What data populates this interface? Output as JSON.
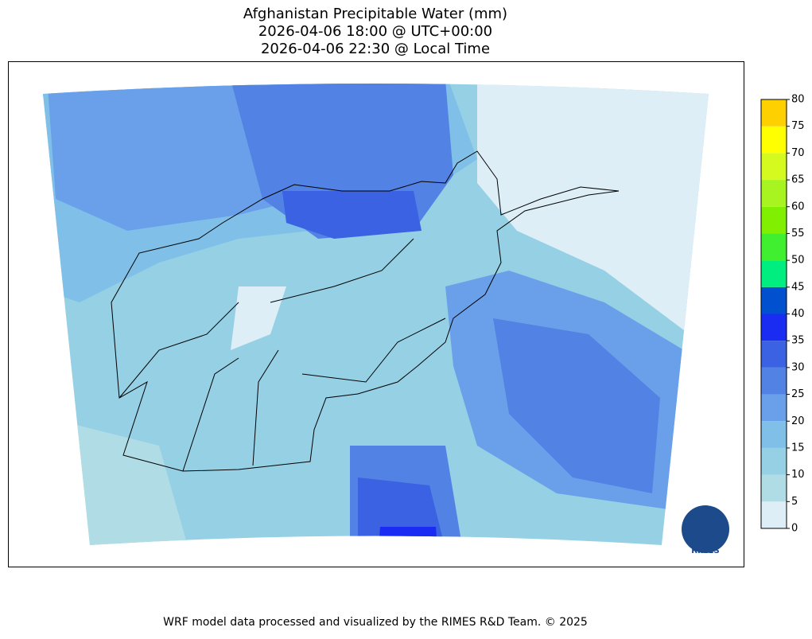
{
  "header": {
    "title_lines": [
      "Afghanistan Precipitable Water (mm)",
      "2026-04-06 18:00 @ UTC+00:00",
      "2026-04-06 22:30 @ Local Time"
    ]
  },
  "colorbar": {
    "ticks": [
      0,
      5,
      10,
      15,
      20,
      25,
      30,
      35,
      40,
      45,
      50,
      55,
      60,
      65,
      70,
      75,
      80
    ],
    "colors": [
      "#ddeef6",
      "#b0dce6",
      "#96d0e4",
      "#80c0e8",
      "#6aa0ea",
      "#5282e4",
      "#3a62e2",
      "#1a2cf2",
      "#0050d0",
      "#00ee80",
      "#40f030",
      "#80f000",
      "#a8f420",
      "#d4fa20",
      "#ffff00",
      "#ffd000"
    ]
  },
  "footer": "WRF model data processed and visualized by the RIMES R&D Team. © 2025",
  "logo": "RIMES"
}
